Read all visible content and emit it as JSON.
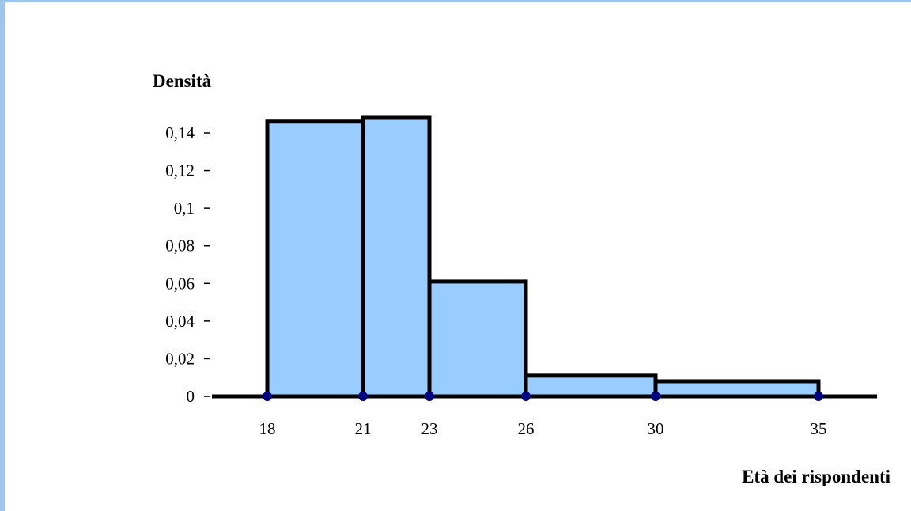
{
  "chart_data": {
    "type": "bar",
    "subtype": "histogram",
    "ylabel": "Densità",
    "xlabel": "Età dei rispondenti",
    "bins": [
      {
        "x0": 18,
        "x1": 21,
        "density": 0.146
      },
      {
        "x0": 21,
        "x1": 23,
        "density": 0.148
      },
      {
        "x0": 23,
        "x1": 26,
        "density": 0.061
      },
      {
        "x0": 26,
        "x1": 30,
        "density": 0.011
      },
      {
        "x0": 30,
        "x1": 35,
        "density": 0.008
      }
    ],
    "x_ticks": [
      "18",
      "21",
      "23",
      "26",
      "30",
      "35"
    ],
    "x_tick_values": [
      18,
      21,
      23,
      26,
      30,
      35
    ],
    "y_ticks": [
      "0",
      "0,02",
      "0,04",
      "0,06",
      "0,08",
      "0,1",
      "0,12",
      "0,14"
    ],
    "y_tick_values": [
      0,
      0.02,
      0.04,
      0.06,
      0.08,
      0.1,
      0.12,
      0.14
    ],
    "ylim": [
      0,
      0.14
    ],
    "grid": false,
    "colors": {
      "bar_fill": "#99ccff",
      "bar_stroke": "#000000",
      "marker": "#000080",
      "frame": "#9cc6ec"
    }
  }
}
